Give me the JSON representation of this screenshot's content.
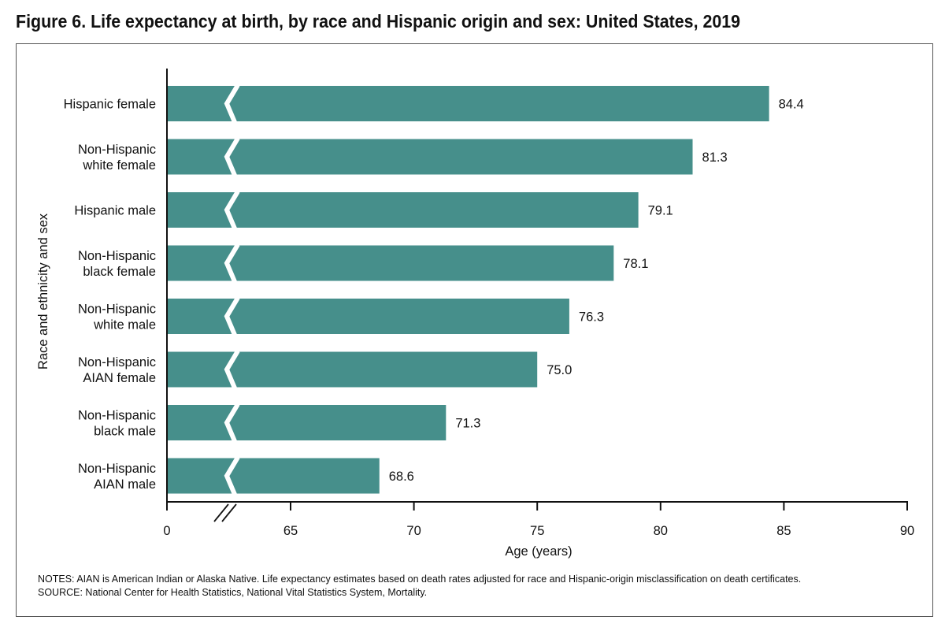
{
  "title": "Figure 6. Life expectancy at birth, by race and Hispanic origin and sex: United States, 2019",
  "notes": "NOTES: AIAN is American Indian or Alaska Native. Life expectancy estimates based on death rates adjusted for race and Hispanic-origin misclassification on death certificates.",
  "source": "SOURCE: National Center for Health Statistics, National Vital Statistics System, Mortality.",
  "colors": {
    "bar": "#468f8b",
    "axis": "#111111"
  },
  "chart_data": {
    "type": "bar",
    "orientation": "horizontal",
    "categories": [
      [
        "Hispanic female"
      ],
      [
        "Non-Hispanic",
        "white female"
      ],
      [
        "Hispanic male"
      ],
      [
        "Non-Hispanic",
        "black female"
      ],
      [
        "Non-Hispanic",
        "white male"
      ],
      [
        "Non-Hispanic",
        "AIAN female"
      ],
      [
        "Non-Hispanic",
        "black male"
      ],
      [
        "Non-Hispanic",
        "AIAN male"
      ]
    ],
    "values": [
      84.4,
      81.3,
      79.1,
      78.1,
      76.3,
      75.0,
      71.3,
      68.6
    ],
    "value_labels": [
      "84.4",
      "81.3",
      "79.1",
      "78.1",
      "76.3",
      "75.0",
      "71.3",
      "68.6"
    ],
    "xlabel": "Age (years)",
    "ylabel": "Race and ethnicity and sex",
    "x_ticks": [
      0,
      65,
      70,
      75,
      80,
      85,
      90
    ],
    "x_tick_labels": [
      "0",
      "65",
      "70",
      "75",
      "80",
      "85",
      "90"
    ],
    "axis_break": "between 0 and 65",
    "xlim": [
      60,
      90
    ],
    "grid": false,
    "legend": "none"
  }
}
